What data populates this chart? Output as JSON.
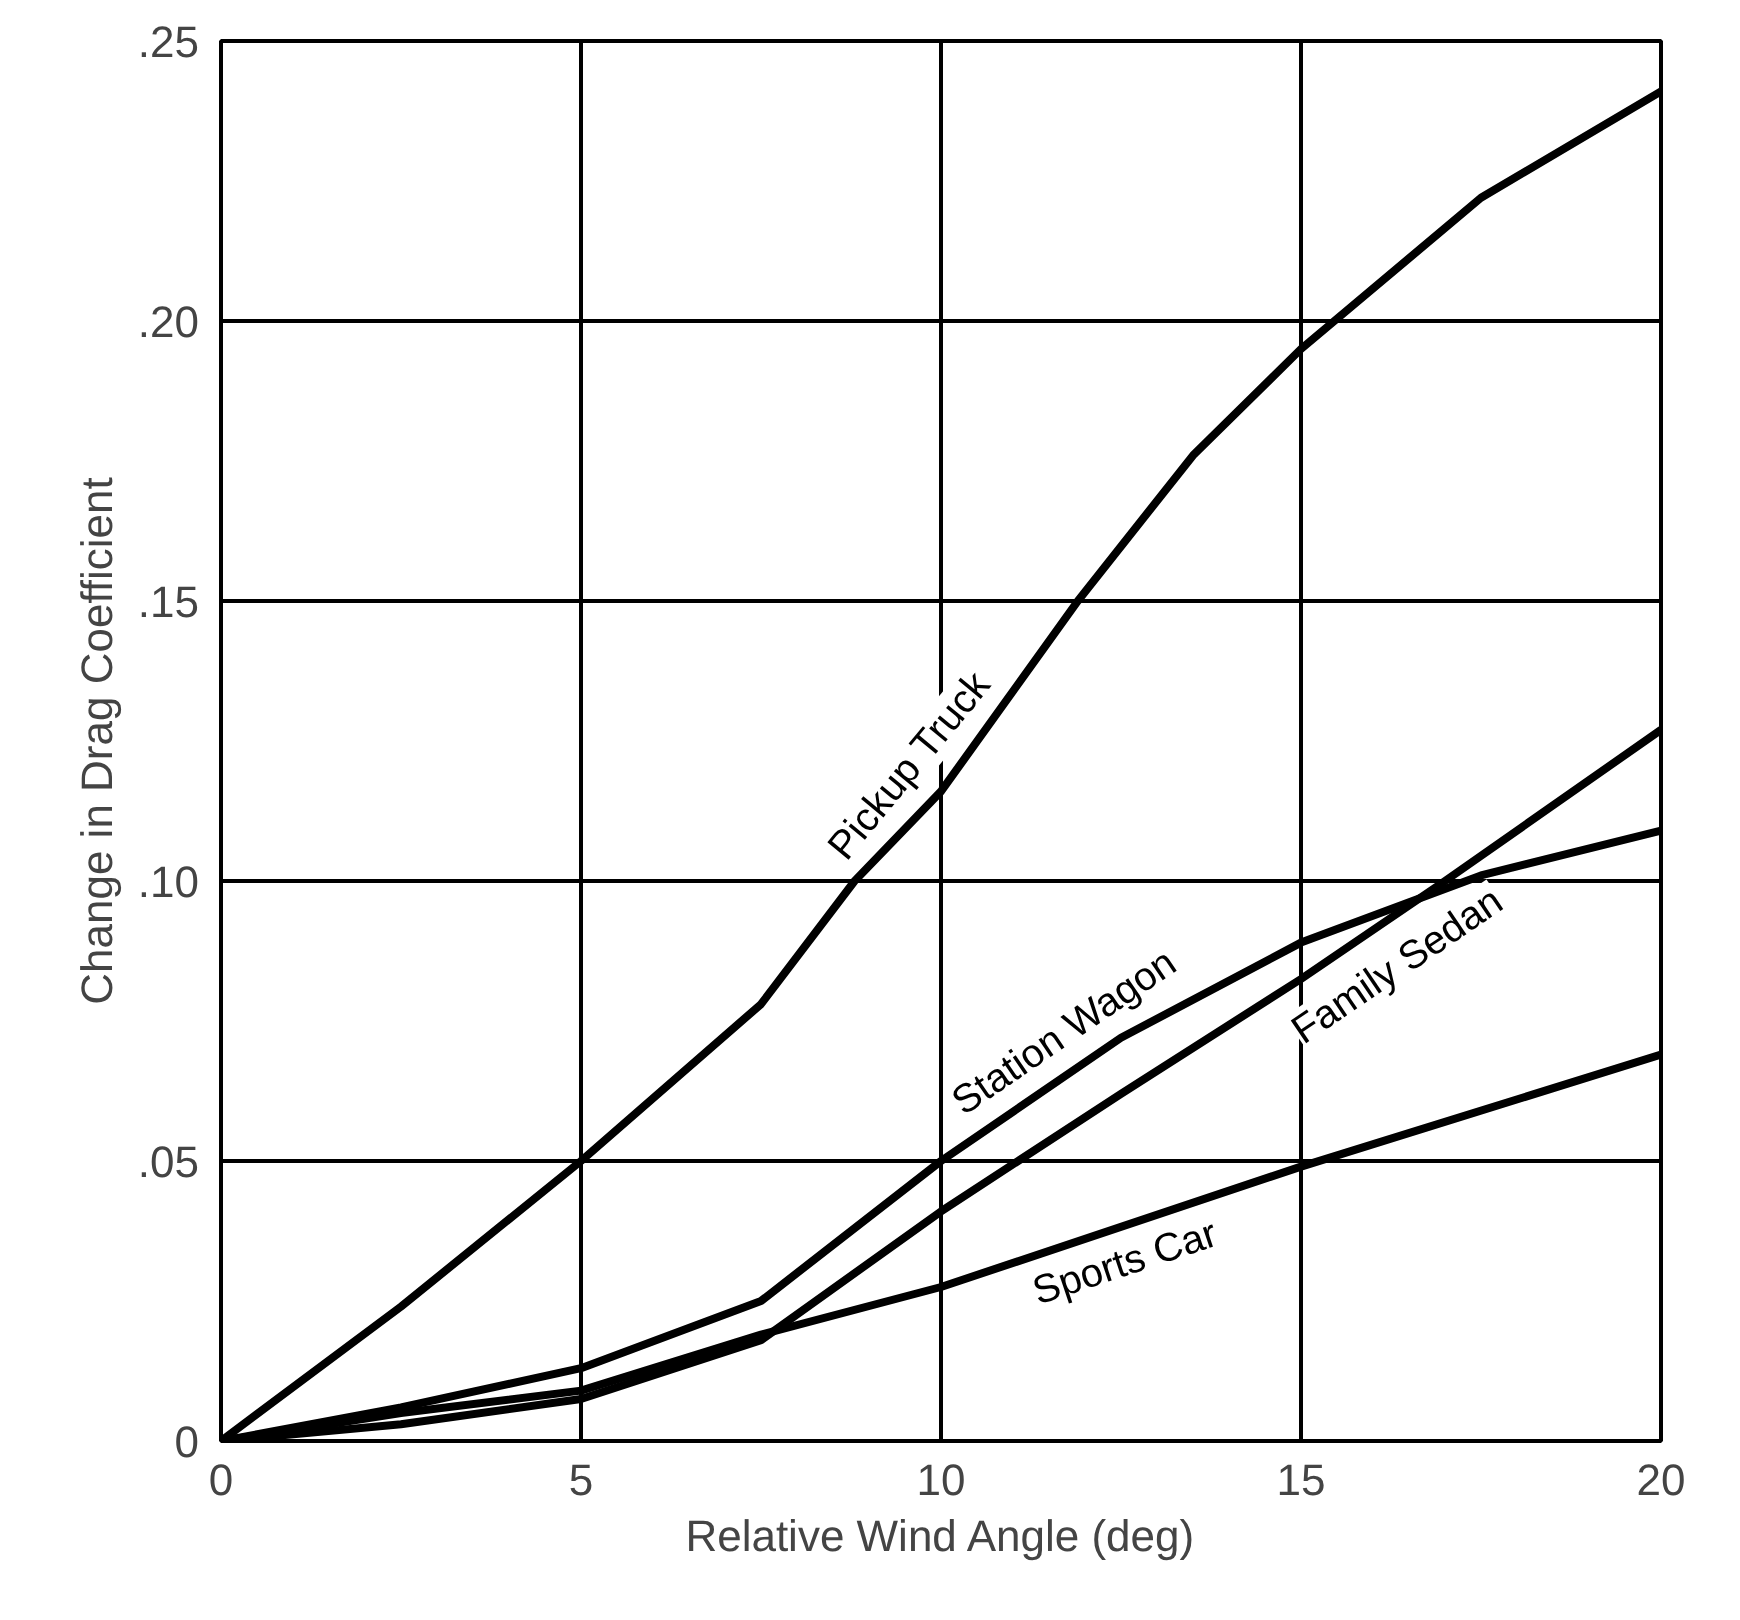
{
  "chart_data": {
    "type": "line",
    "xlabel": "Relative Wind Angle (deg)",
    "ylabel": "Change in Drag Coefficient",
    "xlim": [
      0,
      20
    ],
    "ylim": [
      0,
      0.25
    ],
    "xticks": [
      0,
      5,
      10,
      15,
      20
    ],
    "yticks": [
      {
        "value": 0,
        "label": "0"
      },
      {
        "value": 0.05,
        "label": ".05"
      },
      {
        "value": 0.1,
        "label": ".10"
      },
      {
        "value": 0.15,
        "label": ".15"
      },
      {
        "value": 0.2,
        "label": ".20"
      },
      {
        "value": 0.25,
        "label": ".25"
      }
    ],
    "grid": true,
    "line_style": "solid",
    "marker": "none",
    "series": [
      {
        "name": "Pickup Truck",
        "color": "#000000",
        "x": [
          0,
          2.5,
          5,
          7.5,
          8.8,
          10,
          11.9,
          13.5,
          15,
          17.5,
          20
        ],
        "values": [
          0,
          0.024,
          0.05,
          0.078,
          0.1,
          0.116,
          0.15,
          0.176,
          0.195,
          0.222,
          0.241
        ]
      },
      {
        "name": "Station Wagon",
        "color": "#000000",
        "x": [
          0,
          2.5,
          5,
          7.5,
          10,
          12.5,
          15,
          17.5,
          20
        ],
        "values": [
          0,
          0.006,
          0.013,
          0.025,
          0.05,
          0.072,
          0.089,
          0.101,
          0.109
        ]
      },
      {
        "name": "Family Sedan",
        "color": "#000000",
        "x": [
          0,
          2.5,
          5,
          7.5,
          10,
          12.5,
          15,
          17,
          20
        ],
        "values": [
          0,
          0.003,
          0.0075,
          0.018,
          0.041,
          0.062,
          0.0825,
          0.1,
          0.127
        ]
      },
      {
        "name": "Sports Car",
        "color": "#000000",
        "x": [
          0,
          2.5,
          5,
          7.5,
          10,
          15,
          20
        ],
        "values": [
          0,
          0.005,
          0.009,
          0.019,
          0.0275,
          0.049,
          0.069
        ]
      }
    ]
  }
}
